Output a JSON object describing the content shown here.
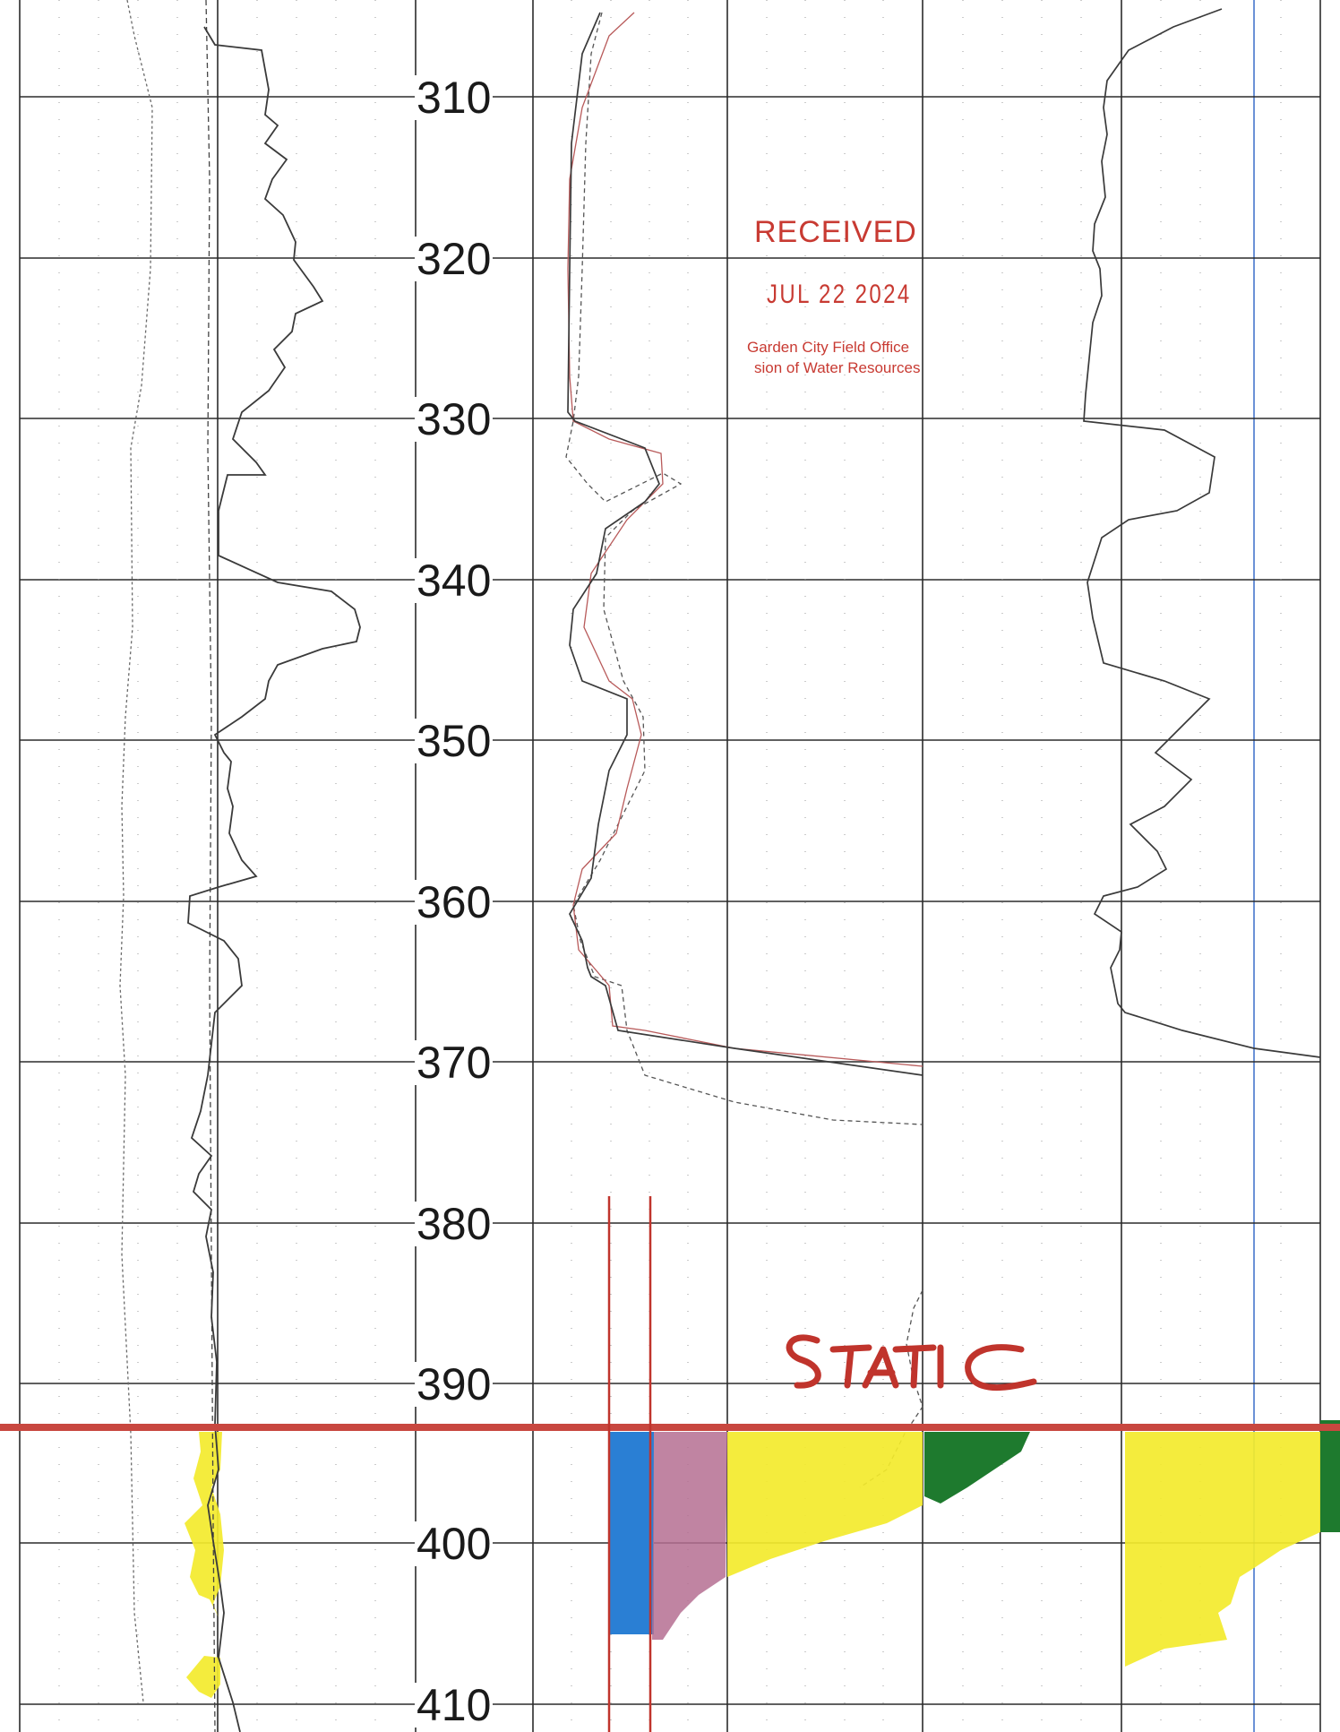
{
  "depth_labels": [
    "310",
    "320",
    "330",
    "340",
    "350",
    "360",
    "370",
    "380",
    "390",
    "400",
    "410"
  ],
  "stamp": {
    "title": "RECEIVED",
    "date": "JUL 22 2024",
    "office": "Garden City Field Office",
    "division": "sion of Water Resources"
  },
  "annotation": {
    "text": "STATIC"
  },
  "colors": {
    "grid": "#2b2b2b",
    "trace": "#3a3a3a",
    "static_line": "#c8473f",
    "stamp": "#c83a32",
    "annotation": "#c0342c",
    "highlight_yellow": "#f3ea2c",
    "fill_blue": "#2a7fd4",
    "fill_mauve": "#b56f92",
    "fill_green": "#1e7a2e",
    "track_blue_line": "#3a6fc8"
  }
}
